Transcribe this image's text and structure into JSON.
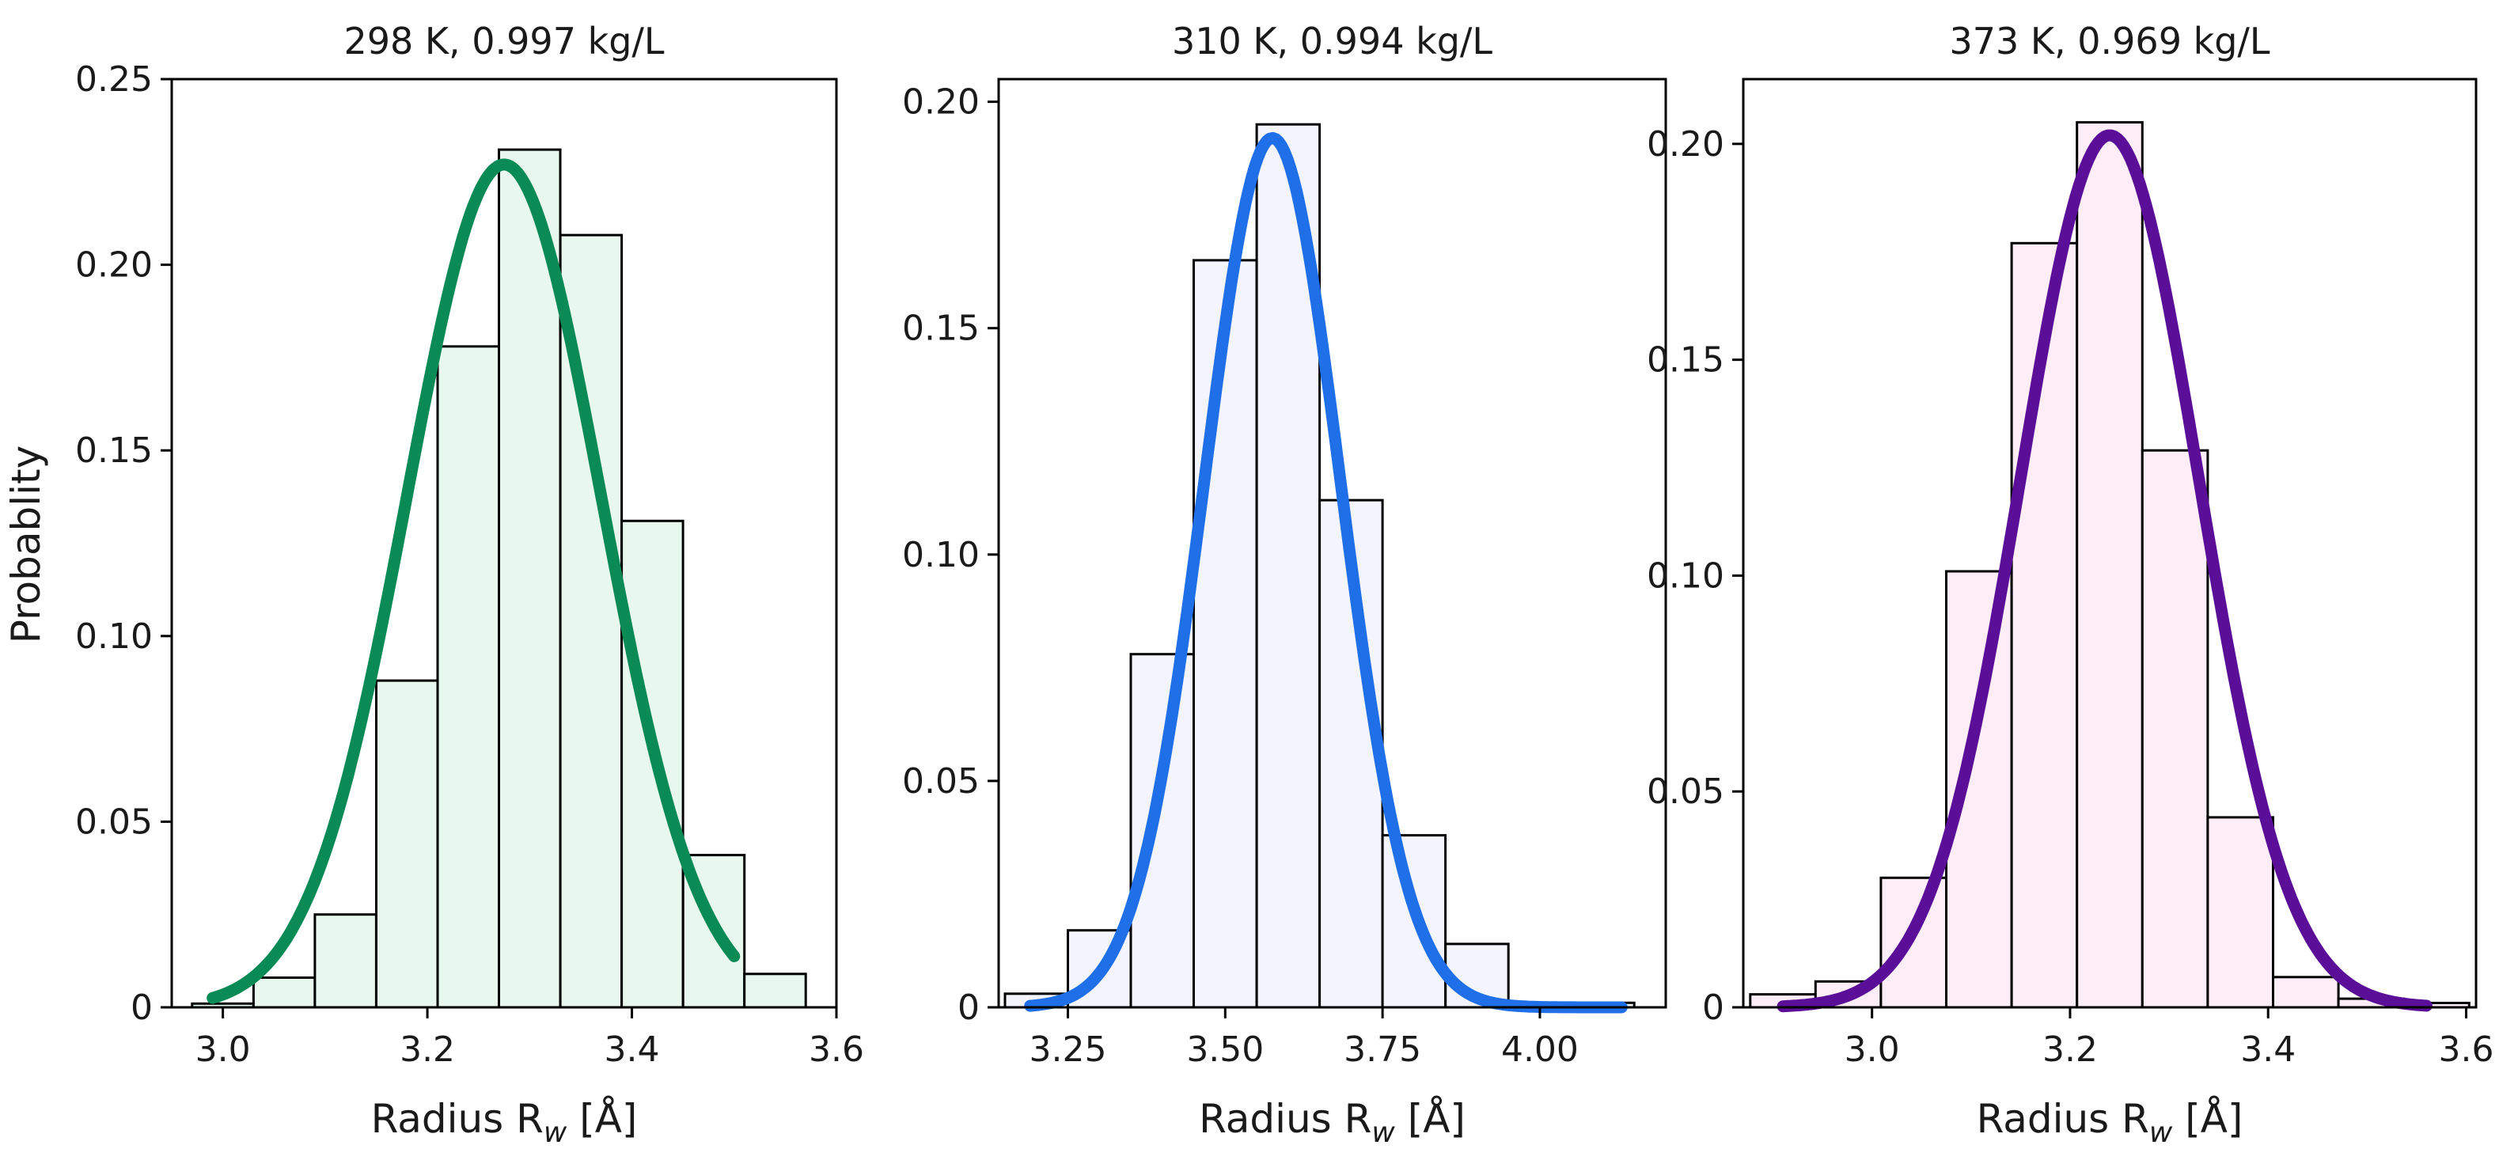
{
  "figure": {
    "ylabel": "Probablity"
  },
  "chart_data": [
    {
      "type": "bar",
      "title": "298 K, 0.997 kg/L",
      "xlabel": "Radius R",
      "xlabel_subscript": "w",
      "xlabel_unit": "[Å]",
      "ylabel": "Probablity",
      "xlim": [
        2.95,
        3.6
      ],
      "ylim": [
        0,
        0.25
      ],
      "xticks": [
        3.0,
        3.2,
        3.4,
        3.6
      ],
      "xtick_labels": [
        "3.0",
        "3.2",
        "3.4",
        "3.6"
      ],
      "yticks": [
        0,
        0.05,
        0.1,
        0.15,
        0.2,
        0.25
      ],
      "ytick_labels": [
        "0",
        "0.05",
        "0.10",
        "0.15",
        "0.20",
        "0.25"
      ],
      "histogram": {
        "bin_width": 0.06,
        "bin_centers": [
          3.0,
          3.06,
          3.12,
          3.18,
          3.24,
          3.3,
          3.36,
          3.42,
          3.48,
          3.54
        ],
        "values": [
          0.001,
          0.008,
          0.025,
          0.088,
          0.178,
          0.231,
          0.208,
          0.131,
          0.041,
          0.009
        ],
        "fill_color": "#e8f8ee",
        "edge_color": "#000000"
      },
      "fit": {
        "type": "gaussian",
        "mean": 3.275,
        "peak": 0.227,
        "sigma": 0.095,
        "x_range": [
          2.99,
          3.5
        ],
        "color": "#0a8a55"
      }
    },
    {
      "type": "bar",
      "title": "310 K, 0.994 kg/L",
      "xlabel": "Radius R",
      "xlabel_subscript": "w",
      "xlabel_unit": "[Å]",
      "ylabel": "",
      "xlim": [
        3.14,
        4.2
      ],
      "ylim": [
        0,
        0.205
      ],
      "xticks": [
        3.25,
        3.5,
        3.75,
        4.0
      ],
      "xtick_labels": [
        "3.25",
        "3.50",
        "3.75",
        "4.00"
      ],
      "yticks": [
        0,
        0.05,
        0.1,
        0.15,
        0.2
      ],
      "ytick_labels": [
        "0",
        "0.05",
        "0.10",
        "0.15",
        "0.20"
      ],
      "histogram": {
        "bin_width": 0.1,
        "bin_centers": [
          3.2,
          3.3,
          3.4,
          3.5,
          3.6,
          3.7,
          3.8,
          3.9,
          4.0,
          4.1
        ],
        "values": [
          0.003,
          0.017,
          0.078,
          0.165,
          0.195,
          0.112,
          0.038,
          0.014,
          0.0,
          0.001
        ],
        "fill_color": "#f3f4fc",
        "edge_color": "#000000"
      },
      "fit": {
        "type": "gaussian",
        "mean": 3.575,
        "peak": 0.192,
        "sigma": 0.108,
        "x_range": [
          3.19,
          4.13
        ],
        "color": "#1f6fe8"
      }
    },
    {
      "type": "bar",
      "title": "373 K, 0.969 kg/L",
      "xlabel": "Radius R",
      "xlabel_subscript": "w",
      "xlabel_unit": "[Å]",
      "ylabel": "",
      "xlim": [
        2.87,
        3.61
      ],
      "ylim": [
        0,
        0.215
      ],
      "xticks": [
        3.0,
        3.2,
        3.4,
        3.6
      ],
      "xtick_labels": [
        "3.0",
        "3.2",
        "3.4",
        "3.6"
      ],
      "yticks": [
        0,
        0.05,
        0.1,
        0.15,
        0.2
      ],
      "ytick_labels": [
        "0",
        "0.05",
        "0.10",
        "0.15",
        "0.20"
      ],
      "histogram": {
        "bin_width": 0.066,
        "bin_centers": [
          2.91,
          2.976,
          3.042,
          3.108,
          3.174,
          3.24,
          3.306,
          3.372,
          3.438,
          3.504,
          3.57
        ],
        "values": [
          0.003,
          0.006,
          0.03,
          0.101,
          0.177,
          0.205,
          0.129,
          0.044,
          0.007,
          0.002,
          0.001
        ],
        "fill_color": "#fcedf6",
        "edge_color": "#000000"
      },
      "fit": {
        "type": "gaussian",
        "mean": 3.24,
        "peak": 0.202,
        "sigma": 0.09,
        "x_range": [
          2.91,
          3.56
        ],
        "color": "#5b0e98"
      }
    }
  ]
}
